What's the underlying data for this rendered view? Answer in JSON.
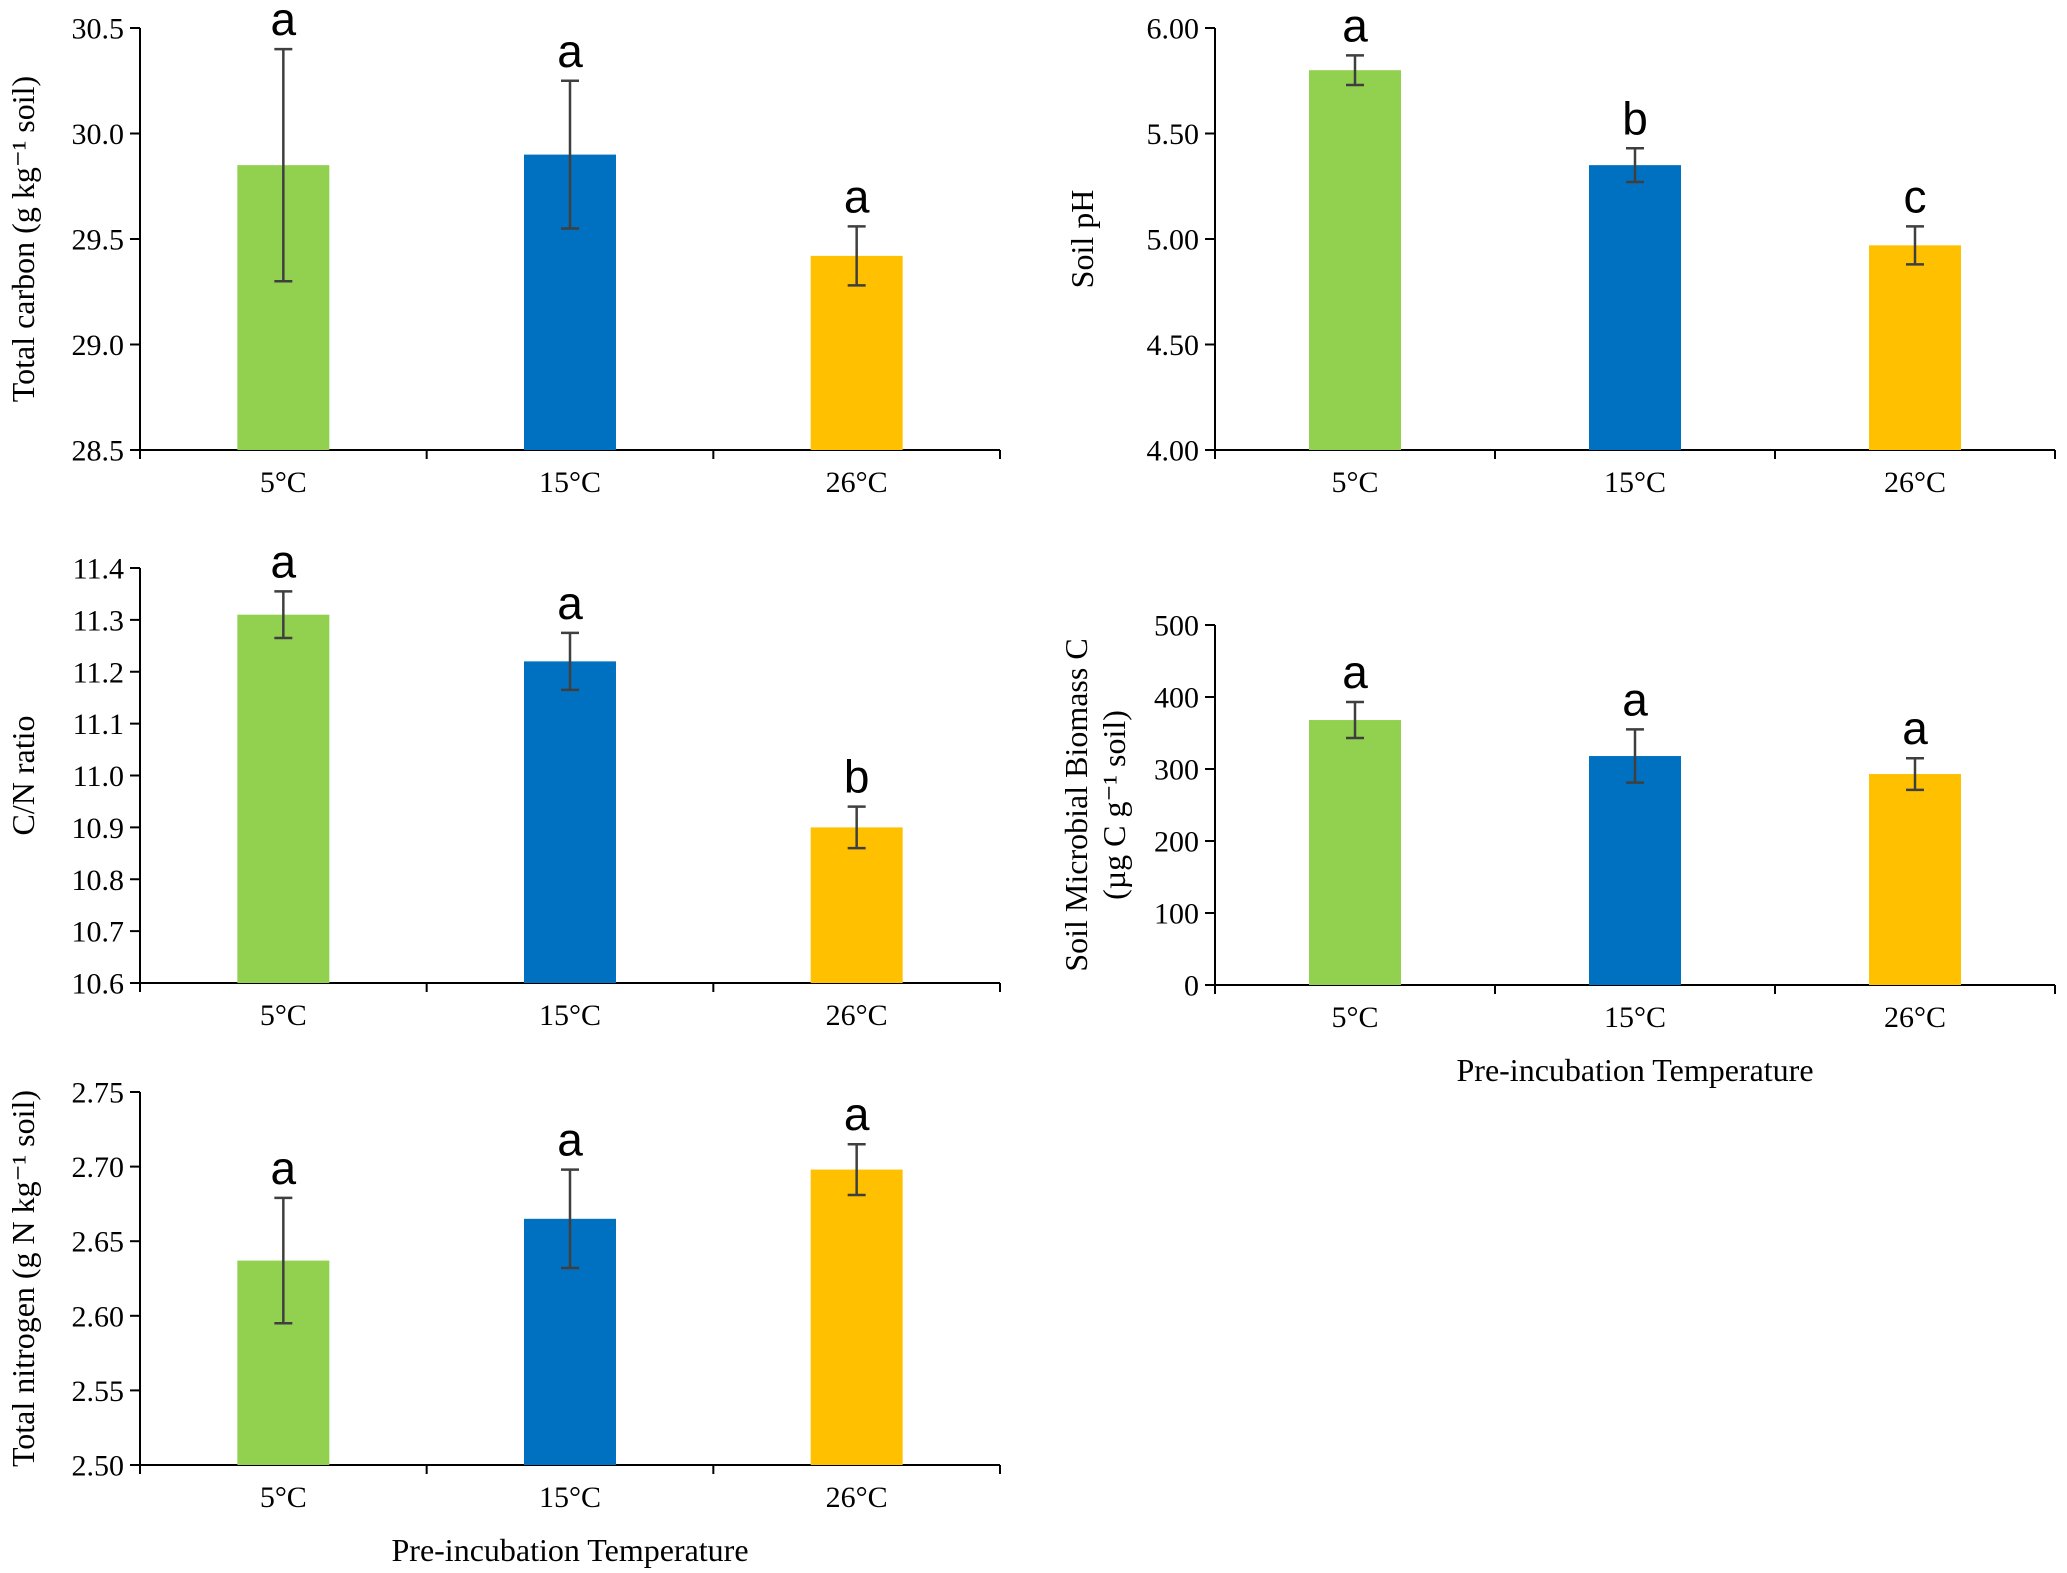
{
  "figure": {
    "background": "#ffffff",
    "bar_colors": [
      "#92D050",
      "#0070C0",
      "#FFC000"
    ],
    "error_bar_color": "#3f3f3f",
    "axis_color": "#000000"
  },
  "chart_data": [
    {
      "id": "total-carbon",
      "type": "bar",
      "ylabel": "Total carbon (g kg⁻¹ soil)",
      "xlabel": "",
      "categories": [
        "5°C",
        "15°C",
        "26°C"
      ],
      "values": [
        29.85,
        29.9,
        29.42
      ],
      "errors": [
        0.55,
        0.35,
        0.14
      ],
      "sig_letters": [
        "a",
        "a",
        "a"
      ],
      "ylim": [
        28.5,
        30.5
      ],
      "ytick_step": 0.5,
      "ytick_decimals": 1,
      "grid": false,
      "legend": "none"
    },
    {
      "id": "soil-ph",
      "type": "bar",
      "ylabel": "Soil pH",
      "xlabel": "",
      "categories": [
        "5°C",
        "15°C",
        "26°C"
      ],
      "values": [
        5.8,
        5.35,
        4.97
      ],
      "errors": [
        0.07,
        0.08,
        0.09
      ],
      "sig_letters": [
        "a",
        "b",
        "c"
      ],
      "ylim": [
        4.0,
        6.0
      ],
      "ytick_step": 0.5,
      "ytick_decimals": 2,
      "grid": false,
      "legend": "none"
    },
    {
      "id": "cn-ratio",
      "type": "bar",
      "ylabel": "C/N ratio",
      "xlabel": "",
      "categories": [
        "5°C",
        "15°C",
        "26°C"
      ],
      "values": [
        11.31,
        11.22,
        10.9
      ],
      "errors": [
        0.045,
        0.055,
        0.04
      ],
      "sig_letters": [
        "a",
        "a",
        "b"
      ],
      "ylim": [
        10.6,
        11.4
      ],
      "ytick_step": 0.1,
      "ytick_decimals": 1,
      "grid": false,
      "legend": "none"
    },
    {
      "id": "soil-microbial-biomass-c",
      "type": "bar",
      "ylabel": [
        "Soil Microbial Biomass C",
        "(µg C g⁻¹ soil)"
      ],
      "xlabel": "Pre-incubation Temperature",
      "categories": [
        "5°C",
        "15°C",
        "26°C"
      ],
      "values": [
        368,
        318,
        293
      ],
      "errors": [
        25,
        37,
        22
      ],
      "sig_letters": [
        "a",
        "a",
        "a"
      ],
      "ylim": [
        0,
        500
      ],
      "ytick_step": 100,
      "ytick_decimals": 0,
      "grid": false,
      "legend": "none"
    },
    {
      "id": "total-nitrogen",
      "type": "bar",
      "ylabel": "Total nitrogen (g N kg⁻¹ soil)",
      "xlabel": "Pre-incubation Temperature",
      "categories": [
        "5°C",
        "15°C",
        "26°C"
      ],
      "values": [
        2.637,
        2.665,
        2.698
      ],
      "errors": [
        0.042,
        0.033,
        0.017
      ],
      "sig_letters": [
        "a",
        "a",
        "a"
      ],
      "ylim": [
        2.5,
        2.75
      ],
      "ytick_step": 0.05,
      "ytick_decimals": 2,
      "grid": false,
      "legend": "none"
    }
  ]
}
